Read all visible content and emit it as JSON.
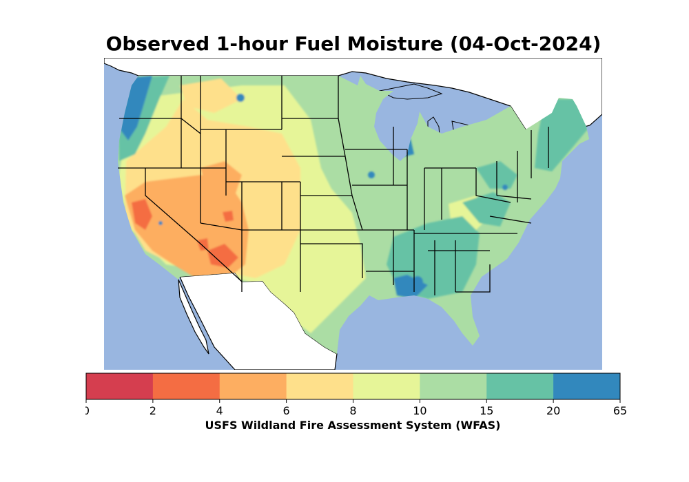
{
  "title": "Observed 1-hour Fuel Moisture (04-Oct-2024)",
  "source_label": "USFS Wildland Fire Assessment System (WFAS)",
  "colors": {
    "ocean": "#99b6e0",
    "background": "#ffffff",
    "borders": "#000000"
  },
  "legend": {
    "ticks": [
      "0",
      "2",
      "4",
      "6",
      "8",
      "10",
      "15",
      "20",
      "65"
    ],
    "bins": [
      {
        "range": "0-2",
        "color": "#d53e4f"
      },
      {
        "range": "2-4",
        "color": "#f46d43"
      },
      {
        "range": "4-6",
        "color": "#fdae61"
      },
      {
        "range": "6-8",
        "color": "#fee08b"
      },
      {
        "range": "8-10",
        "color": "#e6f598"
      },
      {
        "range": "10-15",
        "color": "#abdda4"
      },
      {
        "range": "15-20",
        "color": "#66c2a5"
      },
      {
        "range": "20-65",
        "color": "#3288bd"
      }
    ]
  },
  "map": {
    "region": "Contiguous United States",
    "projection": "Plate Carree",
    "variable": "1-hour fuel moisture (%)"
  }
}
